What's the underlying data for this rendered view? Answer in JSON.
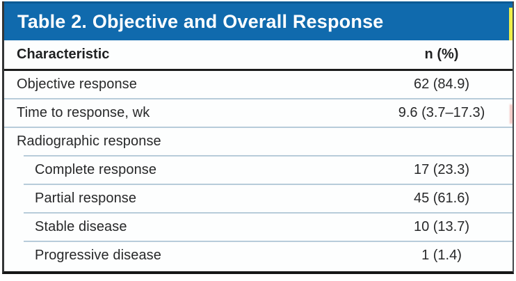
{
  "table": {
    "title": "Table 2. Objective and Overall Response",
    "columns": {
      "characteristic": "Characteristic",
      "n_pct": "n (%)"
    },
    "rows": [
      {
        "label": "Objective response",
        "value": "62 (84.9)",
        "indent": false
      },
      {
        "label": "Time to response, wk",
        "value": "9.6 (3.7–17.3)",
        "indent": false
      },
      {
        "label": "Radiographic response",
        "value": "",
        "indent": false
      },
      {
        "label": "Complete response",
        "value": "17 (23.3)",
        "indent": true
      },
      {
        "label": "Partial response",
        "value": "45 (61.6)",
        "indent": true
      },
      {
        "label": "Stable disease",
        "value": "10 (13.7)",
        "indent": true
      },
      {
        "label": "Progressive disease",
        "value": "1 (1.4)",
        "indent": true
      }
    ],
    "colors": {
      "header_bg": "#106aad",
      "header_bg_dark_edge": "#0b5a94",
      "separator": "#b7ccda",
      "header_rule": "#1b1b1b",
      "frame_border": "#333536",
      "text": "#272829",
      "title_text": "#ffffff",
      "artifact_yellow": "#eff04a"
    }
  }
}
